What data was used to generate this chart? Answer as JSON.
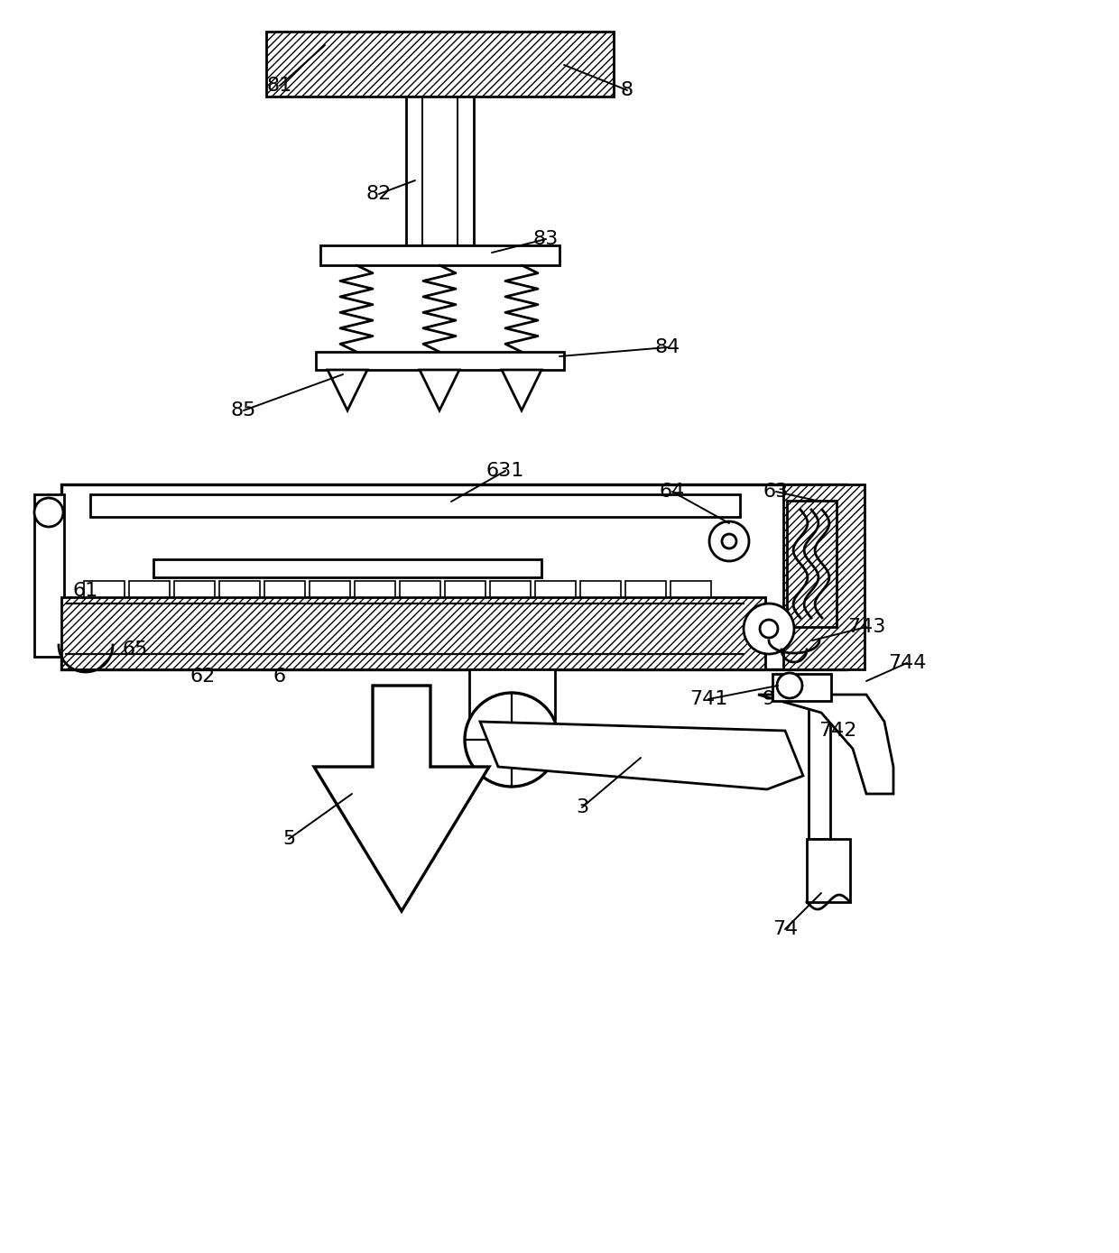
{
  "bg_color": "#ffffff",
  "line_color": "#000000",
  "lw": 2.0,
  "fontsize": 16
}
